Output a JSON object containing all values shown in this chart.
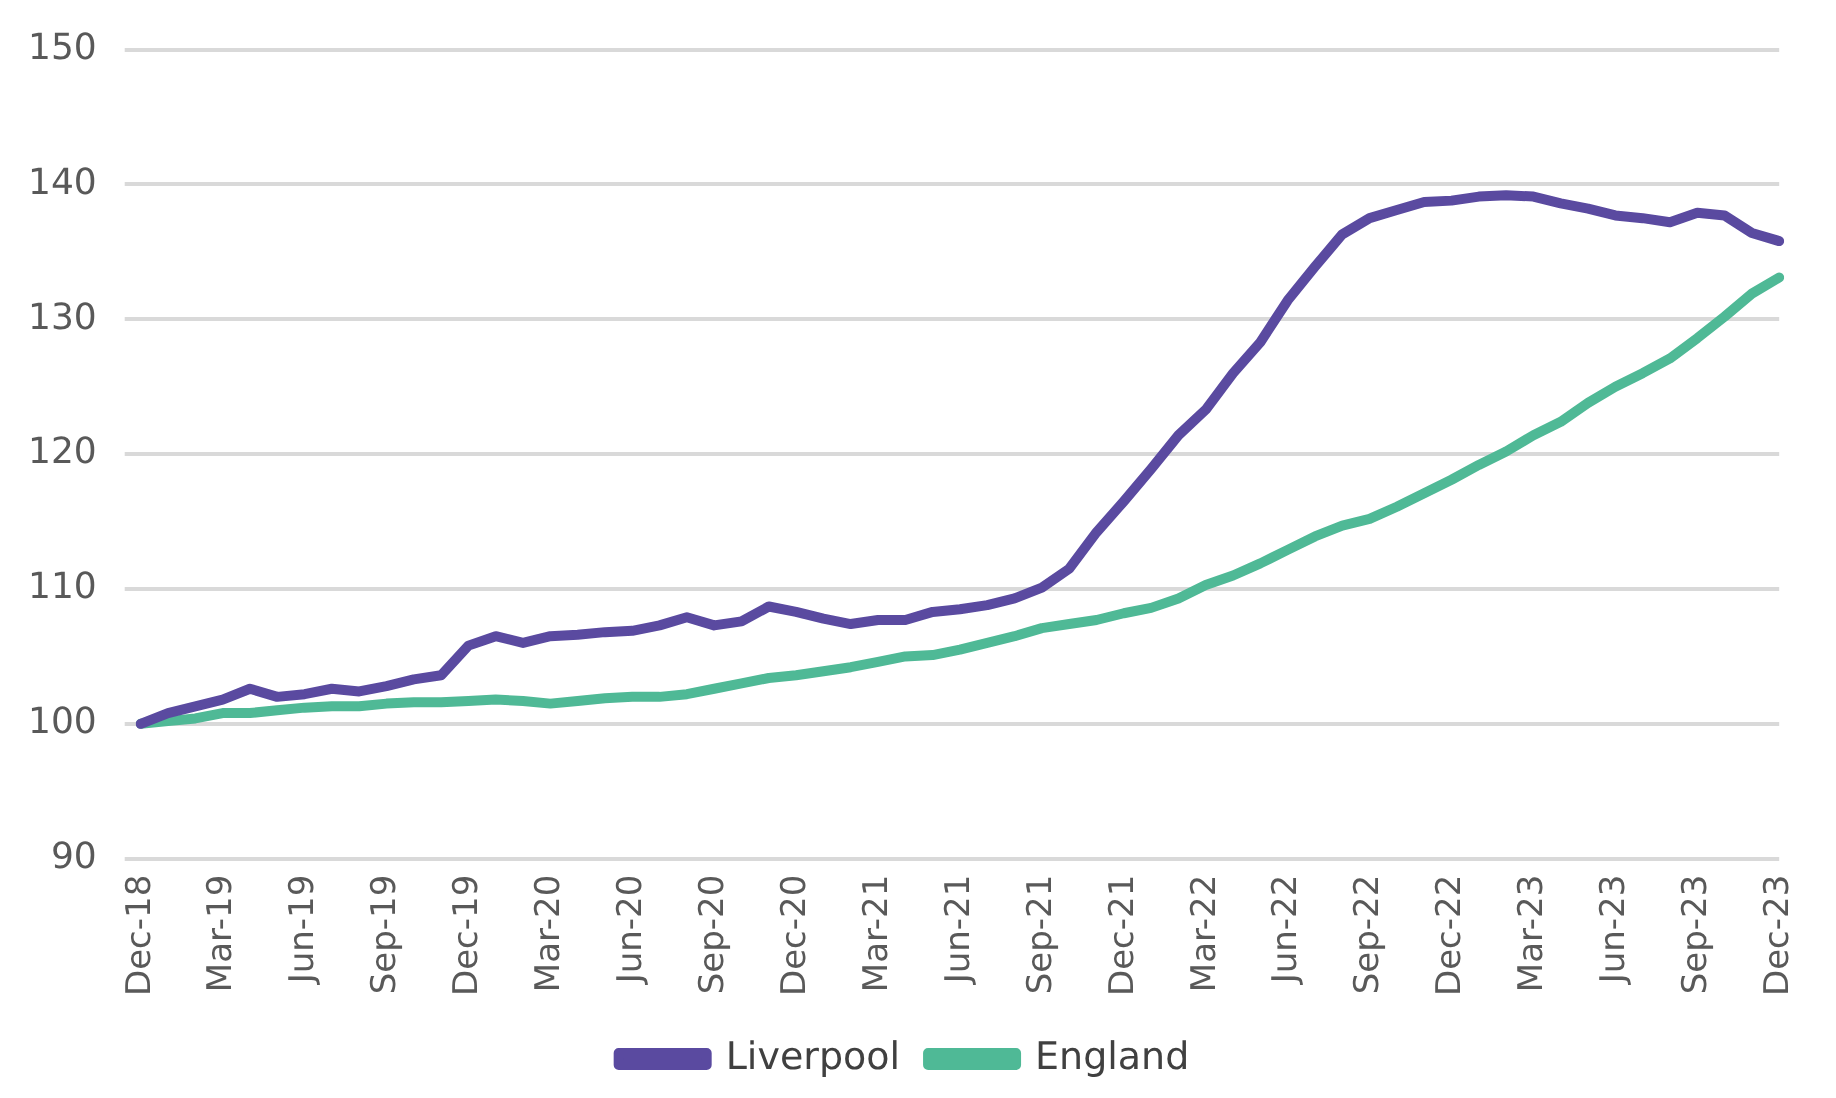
{
  "chart_data": {
    "type": "line",
    "categories": [
      "Dec-18",
      null,
      null,
      "Mar-19",
      null,
      null,
      "Jun-19",
      null,
      null,
      "Sep-19",
      null,
      null,
      "Dec-19",
      null,
      null,
      "Mar-20",
      null,
      null,
      "Jun-20",
      null,
      null,
      "Sep-20",
      null,
      null,
      "Dec-20",
      null,
      null,
      "Mar-21",
      null,
      null,
      "Jun-21",
      null,
      null,
      "Sep-21",
      null,
      null,
      "Dec-21",
      null,
      null,
      "Mar-22",
      null,
      null,
      "Jun-22",
      null,
      null,
      "Sep-22",
      null,
      null,
      "Dec-22",
      null,
      null,
      "Mar-23",
      null,
      null,
      "Jun-23",
      null,
      null,
      "Sep-23",
      null,
      null,
      "Dec-23"
    ],
    "series": [
      {
        "name": "Liverpool",
        "color": "#5a4aa0",
        "values": [
          100,
          100.8,
          101.3,
          101.8,
          102.6,
          102.0,
          102.2,
          102.6,
          102.4,
          102.8,
          103.3,
          103.6,
          105.8,
          106.5,
          106.0,
          106.5,
          106.6,
          106.8,
          106.9,
          107.3,
          107.9,
          107.3,
          107.6,
          108.7,
          108.3,
          107.8,
          107.4,
          107.7,
          107.7,
          108.3,
          108.5,
          108.8,
          109.3,
          110.1,
          111.5,
          114.2,
          116.5,
          118.9,
          121.4,
          123.3,
          126.0,
          128.3,
          131.4,
          133.9,
          136.3,
          137.5,
          138.1,
          138.7,
          138.8,
          139.1,
          139.2,
          139.1,
          138.6,
          138.2,
          137.7,
          137.5,
          137.2,
          137.9,
          137.7,
          136.4,
          135.8
        ]
      },
      {
        "name": "England",
        "color": "#4fb996",
        "values": [
          100,
          100.2,
          100.4,
          100.8,
          100.8,
          101.0,
          101.2,
          101.3,
          101.3,
          101.5,
          101.6,
          101.6,
          101.7,
          101.8,
          101.7,
          101.5,
          101.7,
          101.9,
          102.0,
          102.0,
          102.2,
          102.6,
          103.0,
          103.4,
          103.6,
          103.9,
          104.2,
          104.6,
          105.0,
          105.1,
          105.5,
          106.0,
          106.5,
          107.1,
          107.4,
          107.7,
          108.2,
          108.6,
          109.3,
          110.3,
          111.0,
          111.9,
          112.9,
          113.9,
          114.7,
          115.2,
          116.1,
          117.1,
          118.1,
          119.2,
          120.2,
          121.4,
          122.4,
          123.8,
          125.0,
          126.0,
          127.1,
          128.6,
          130.2,
          131.9,
          133.1
        ]
      }
    ],
    "ylim": [
      90,
      150
    ],
    "yticks": [
      90,
      100,
      110,
      120,
      130,
      140,
      150
    ],
    "grid": "y",
    "legend": "bottom",
    "marker": "none",
    "line_style": "solid"
  }
}
